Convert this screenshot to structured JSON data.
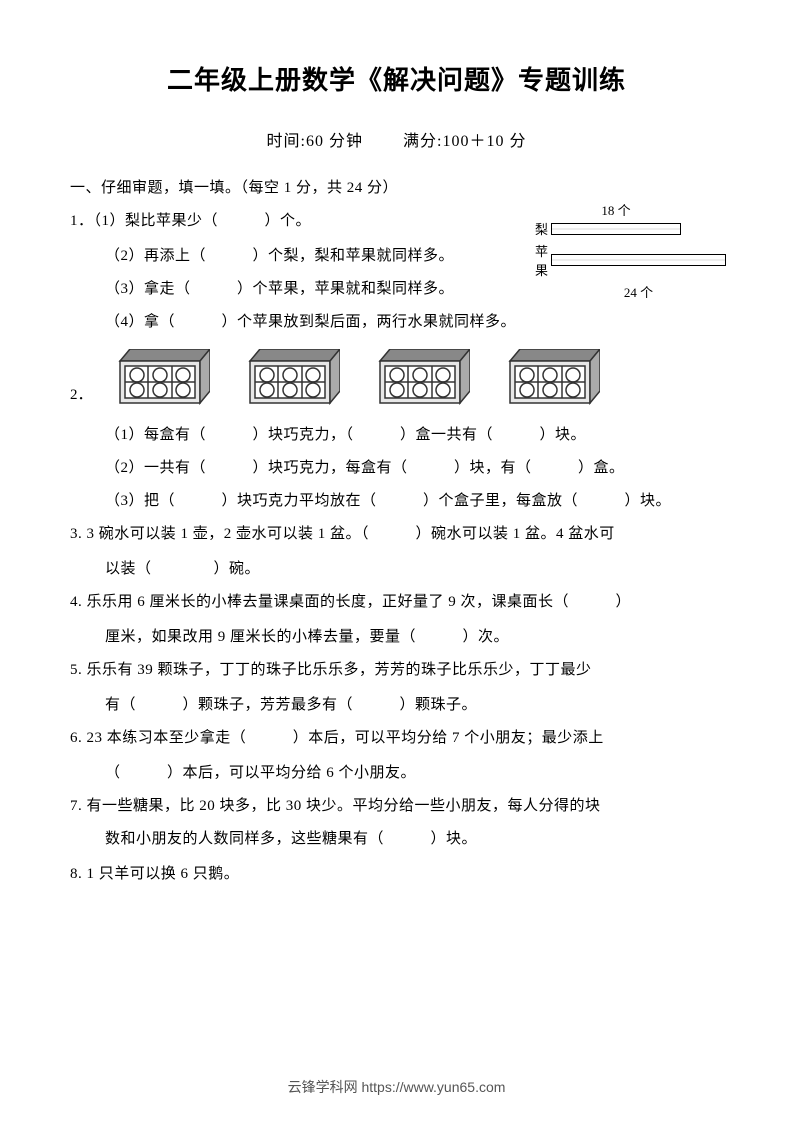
{
  "title": "二年级上册数学《解决问题》专题训练",
  "subtitle_time": "时间:60 分钟",
  "subtitle_score": "满分:100＋10 分",
  "section1_header": "一、仔细审题，填一填。（每空 1 分，共 24 分）",
  "q1": {
    "num": "1．",
    "p1": "（1）梨比苹果少（　　　）个。",
    "p2": "（2）再添上（　　　）个梨，梨和苹果就同样多。",
    "p3": "（3）拿走（　　　）个苹果，苹果就和梨同样多。",
    "p4": "（4）拿（　　　）个苹果放到梨后面，两行水果就同样多。",
    "diagram": {
      "pear_label": "梨",
      "apple_label": "苹果",
      "pear_count": "18 个",
      "apple_count": "24 个"
    }
  },
  "q2": {
    "num": "2．",
    "p1": "（1）每盒有（　　　）块巧克力，（　　　）盒一共有（　　　）块。",
    "p2": "（2）一共有（　　　）块巧克力，每盒有（　　　）块，有（　　　）盒。",
    "p3": "（3）把（　　　）块巧克力平均放在（　　　）个盒子里，每盒放（　　　）块。",
    "box_count": 4,
    "box_color": "#666666",
    "box_inner": "#ffffff"
  },
  "q3": "3. 3 碗水可以装 1 壶，2 壶水可以装 1 盆。（　　　）碗水可以装 1 盆。4 盆水可以装（　　　　）碗。",
  "q3_line2": "以装（　　　　）碗。",
  "q4": "4. 乐乐用 6 厘米长的小棒去量课桌面的长度，正好量了 9 次，课桌面长（　　　）厘米，如果改用 9 厘米长的小棒去量，要量（　　　）次。",
  "q4_line2": "厘米，如果改用 9 厘米长的小棒去量，要量（　　　）次。",
  "q5": "5. 乐乐有 39 颗珠子，丁丁的珠子比乐乐多，芳芳的珠子比乐乐少，丁丁最少有（　　　）颗珠子，芳芳最多有（　　　）颗珠子。",
  "q5_line2": "有（　　　）颗珠子，芳芳最多有（　　　）颗珠子。",
  "q6": "6. 23 本练习本至少拿走（　　　）本后，可以平均分给 7 个小朋友；最少添上（　　　）本后，可以平均分给 6 个小朋友。",
  "q6_line2": "（　　　）本后，可以平均分给 6 个小朋友。",
  "q7": "7. 有一些糖果，比 20 块多，比 30 块少。平均分给一些小朋友，每人分得的块数和小朋友的人数同样多，这些糖果有（　　　）块。",
  "q7_line2": "数和小朋友的人数同样多，这些糖果有（　　　）块。",
  "q8": "8. 1 只羊可以换 6 只鹅。",
  "footer": "云锋学科网 https://www.yun65.com",
  "q3_l1": "3. 3 碗水可以装 1 壶，2 壶水可以装 1 盆。（　　　）碗水可以装 1 盆。4 盆水可",
  "q4_l1": "4. 乐乐用 6 厘米长的小棒去量课桌面的长度，正好量了 9 次，课桌面长（　　　）",
  "q5_l1": "5. 乐乐有 39 颗珠子，丁丁的珠子比乐乐多，芳芳的珠子比乐乐少，丁丁最少",
  "q6_l1": "6. 23 本练习本至少拿走（　　　）本后，可以平均分给 7 个小朋友；最少添上"
}
